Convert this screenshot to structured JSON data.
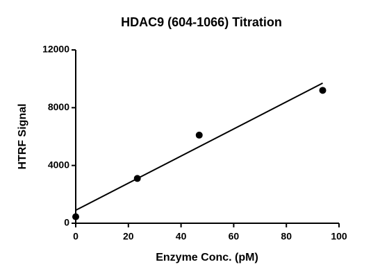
{
  "chart_data": {
    "type": "scatter",
    "title": "HDAC9 (604-1066) Titration",
    "x_label": "Enzyme Conc. (pM)",
    "y_label": "HTRF Signal",
    "series": [
      {
        "color": "#000000",
        "x": [
          0,
          23.4,
          46.9,
          93.8
        ],
        "values": [
          450,
          3100,
          6100,
          9200
        ]
      }
    ],
    "fit_line": {
      "color": "#000000",
      "x": [
        0,
        93.8
      ],
      "values": [
        900,
        9700
      ]
    },
    "xlim": [
      0,
      100
    ],
    "xticks": [
      0,
      20,
      40,
      60,
      80,
      100
    ],
    "ylim": [
      0,
      12000
    ],
    "yticks": [
      0,
      4000,
      8000,
      12000
    ]
  }
}
